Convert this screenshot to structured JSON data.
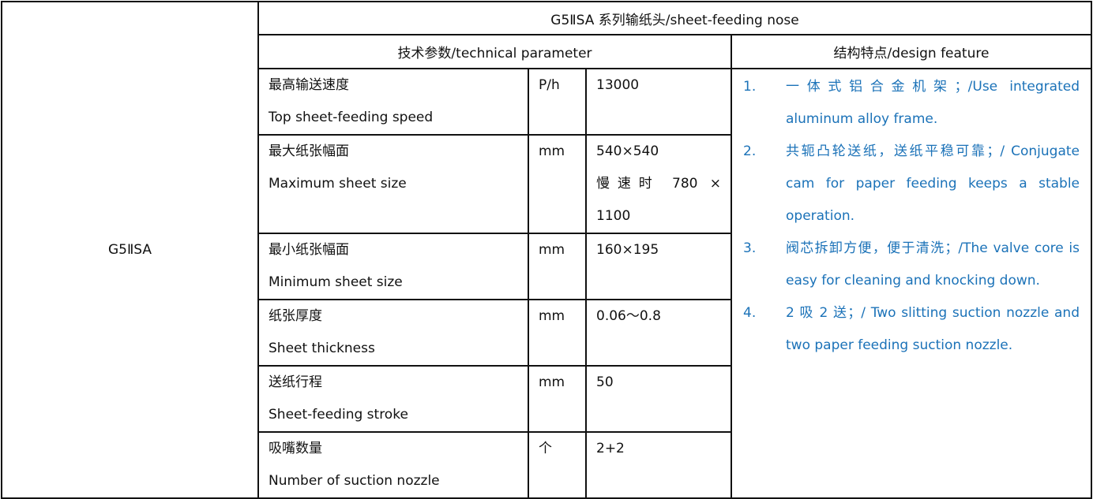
{
  "model": "G5ⅡSA",
  "title": "G5ⅡSA 系列输纸头/sheet-feeding nose",
  "headers": {
    "technical": "技术参数/technical parameter",
    "design": "结构特点/design feature"
  },
  "params": [
    {
      "zh": "最高输送速度",
      "en": "Top sheet-feeding speed",
      "unit": "P/h",
      "value": [
        "13000"
      ]
    },
    {
      "zh": "最大纸张幅面",
      "en": "Maximum sheet size",
      "unit": "mm",
      "value": [
        "540×540",
        "慢速时 780 ×",
        "1100"
      ]
    },
    {
      "zh": "最小纸张幅面",
      "en": "Minimum sheet size",
      "unit": "mm",
      "value": [
        "160×195"
      ]
    },
    {
      "zh": "纸张厚度",
      "en": "Sheet thickness",
      "unit": "mm",
      "value": [
        "0.06～0.8"
      ]
    },
    {
      "zh": "送纸行程",
      "en": "Sheet-feeding stroke",
      "unit": "mm",
      "value": [
        "50"
      ]
    },
    {
      "zh": "吸嘴数量",
      "en": "Number of suction nozzle",
      "unit": "个",
      "value": [
        "2+2"
      ]
    }
  ],
  "features": [
    {
      "num": "1.",
      "text": "一体式铝合金机架；/Use integrated aluminum alloy frame."
    },
    {
      "num": "2.",
      "text": "共轭凸轮送纸，送纸平稳可靠；/ Conjugate cam for paper feeding keeps a stable operation."
    },
    {
      "num": "3.",
      "text": "阀芯拆卸方便，便于清洗；/The valve core is easy for cleaning and knocking down."
    },
    {
      "num": "4.",
      "text": "2 吸 2 送；/ Two slitting suction nozzle and two paper feeding suction nozzle."
    }
  ],
  "colors": {
    "feature_text": "#1b72b8",
    "border": "#111111"
  }
}
